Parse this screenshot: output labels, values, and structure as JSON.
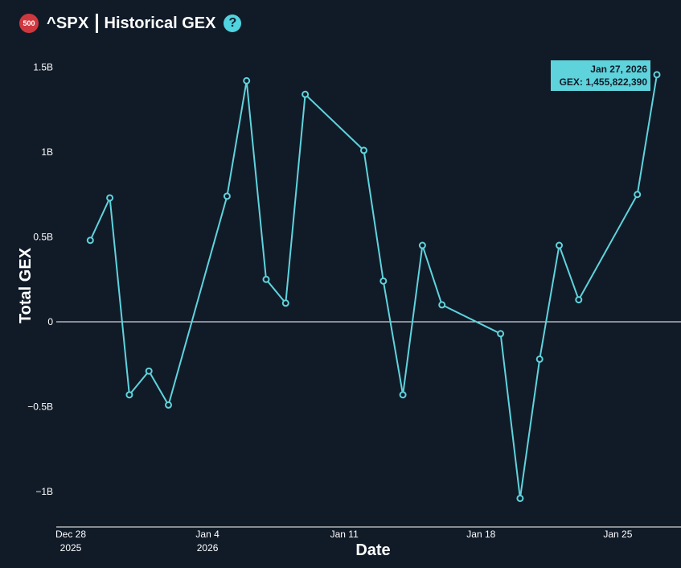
{
  "header": {
    "badge": "500",
    "ticker": "^SPX",
    "title": "Historical GEX",
    "help": "?"
  },
  "colors": {
    "background": "#111b28",
    "line": "#5fd3dc",
    "badge": "#d0383f",
    "text": "#ffffff"
  },
  "chart_data": {
    "type": "line",
    "xlabel": "Date",
    "ylabel": "Total GEX",
    "ylim": [
      -1.1,
      1.5
    ],
    "yticks": [
      {
        "value": 1.5,
        "label": "1.5B"
      },
      {
        "value": 1,
        "label": "1B"
      },
      {
        "value": 0.5,
        "label": "0.5B"
      },
      {
        "value": 0,
        "label": "0"
      },
      {
        "value": -0.5,
        "label": "−0.5B"
      },
      {
        "value": -1,
        "label": "−1B"
      }
    ],
    "xticks": [
      {
        "date": "2025-12-28",
        "line1": "Dec 28",
        "line2": "2025"
      },
      {
        "date": "2026-01-04",
        "line1": "Jan 4",
        "line2": "2026"
      },
      {
        "date": "2026-01-11",
        "line1": "Jan 11",
        "line2": ""
      },
      {
        "date": "2026-01-18",
        "line1": "Jan 18",
        "line2": ""
      },
      {
        "date": "2026-01-25",
        "line1": "Jan 25",
        "line2": ""
      }
    ],
    "xlim": [
      "2025-12-27",
      "2026-01-28"
    ],
    "grid": false,
    "zero_line": true,
    "series": [
      {
        "points": [
          {
            "date": "2025-12-29",
            "value": 0.48
          },
          {
            "date": "2025-12-30",
            "value": 0.73
          },
          {
            "date": "2025-12-31",
            "value": -0.43
          },
          {
            "date": "2026-01-01",
            "value": -0.29
          },
          {
            "date": "2026-01-02",
            "value": -0.49
          },
          {
            "date": "2026-01-05",
            "value": 0.74
          },
          {
            "date": "2026-01-06",
            "value": 1.42
          },
          {
            "date": "2026-01-07",
            "value": 0.25
          },
          {
            "date": "2026-01-08",
            "value": 0.11
          },
          {
            "date": "2026-01-09",
            "value": 1.34
          },
          {
            "date": "2026-01-12",
            "value": 1.01
          },
          {
            "date": "2026-01-13",
            "value": 0.24
          },
          {
            "date": "2026-01-14",
            "value": -0.43
          },
          {
            "date": "2026-01-15",
            "value": 0.45
          },
          {
            "date": "2026-01-16",
            "value": 0.1
          },
          {
            "date": "2026-01-19",
            "value": -0.07
          },
          {
            "date": "2026-01-20",
            "value": -1.04
          },
          {
            "date": "2026-01-21",
            "value": -0.22
          },
          {
            "date": "2026-01-22",
            "value": 0.45
          },
          {
            "date": "2026-01-23",
            "value": 0.13
          },
          {
            "date": "2026-01-26",
            "value": 0.75
          },
          {
            "date": "2026-01-27",
            "value": 1.45582239
          }
        ]
      }
    ],
    "tooltip": {
      "date_label": "Jan 27, 2026",
      "value_label": "GEX: 1,455,822,390"
    }
  }
}
